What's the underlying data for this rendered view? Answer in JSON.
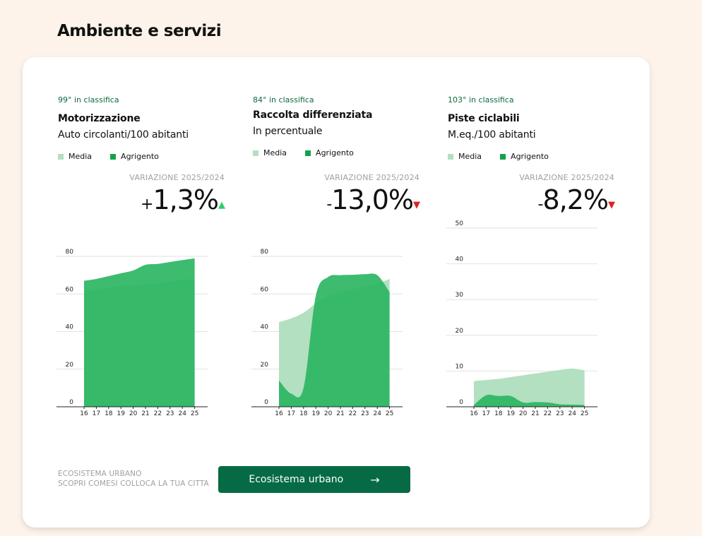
{
  "page": {
    "title": "Ambiente e servizi"
  },
  "legend": {
    "media": "Media",
    "city": "Agrigento"
  },
  "colors": {
    "media": "#b2e0c0",
    "city": "#2db563",
    "up": "#2ecc71",
    "down": "#e02020",
    "rank": "#0b6b3f",
    "button": "#066b45"
  },
  "variation_label": "VARIAZIONE 2025/2024",
  "panels": [
    {
      "rank": "99° in classifica",
      "title": "Motorizzazione",
      "subtitle": "Auto circolanti/100 abitanti",
      "variation": {
        "sign": "+",
        "value": "1,3%",
        "direction": "up",
        "arrow": "▲"
      }
    },
    {
      "rank": "84° in classifica",
      "title": "Raccolta differenziata",
      "subtitle": "In percentuale",
      "variation": {
        "sign": "-",
        "value": "13,0%",
        "direction": "down",
        "arrow": "▼"
      }
    },
    {
      "rank": "103° in classifica",
      "title": "Piste ciclabili",
      "subtitle": "M.eq./100 abitanti",
      "variation": {
        "sign": "-",
        "value": "8,2%",
        "direction": "down",
        "arrow": "▼"
      }
    }
  ],
  "chart_data": [
    {
      "type": "area",
      "x": [
        "16",
        "17",
        "18",
        "19",
        "20",
        "21",
        "22",
        "23",
        "24",
        "25"
      ],
      "ylim": [
        0,
        80
      ],
      "yticks": [
        0,
        20,
        40,
        60,
        80
      ],
      "series": [
        {
          "name": "Media",
          "values": [
            61.5,
            62.5,
            63.3,
            64,
            64.6,
            65,
            65.4,
            66.5,
            67.5,
            68
          ]
        },
        {
          "name": "Agrigento",
          "values": [
            67,
            68,
            69.5,
            71,
            72.5,
            75.5,
            76,
            77,
            78,
            79
          ]
        }
      ]
    },
    {
      "type": "area",
      "x": [
        "16",
        "17",
        "18",
        "19",
        "20",
        "21",
        "22",
        "23",
        "24",
        "25"
      ],
      "ylim": [
        0,
        80
      ],
      "yticks": [
        0,
        20,
        40,
        60,
        80
      ],
      "series": [
        {
          "name": "Media",
          "values": [
            45,
            47,
            50,
            55,
            59,
            61,
            62.5,
            64,
            65.5,
            68
          ]
        },
        {
          "name": "Agrigento",
          "values": [
            14,
            7,
            10,
            59,
            69,
            70,
            70.2,
            70.5,
            70,
            61
          ]
        }
      ]
    },
    {
      "type": "area",
      "x": [
        "16",
        "17",
        "18",
        "19",
        "20",
        "21",
        "22",
        "23",
        "24",
        "25"
      ],
      "ylim": [
        0,
        50
      ],
      "yticks": [
        0,
        10,
        20,
        30,
        40,
        50
      ],
      "series": [
        {
          "name": "Media",
          "values": [
            7.2,
            7.5,
            7.8,
            8.3,
            8.8,
            9.3,
            9.8,
            10.3,
            10.7,
            10.2
          ]
        },
        {
          "name": "Agrigento",
          "values": [
            0.5,
            3.2,
            3.0,
            3.0,
            1.2,
            1.3,
            1.2,
            0.7,
            0.6,
            0.5
          ]
        }
      ]
    }
  ],
  "footer": {
    "line1": "ECOSISTEMA URBANO",
    "line2": "SCOPRI COMESI COLLOCA LA TUA CITTA",
    "button_label": "Ecosistema urbano",
    "button_icon": "arrow-right-icon"
  }
}
